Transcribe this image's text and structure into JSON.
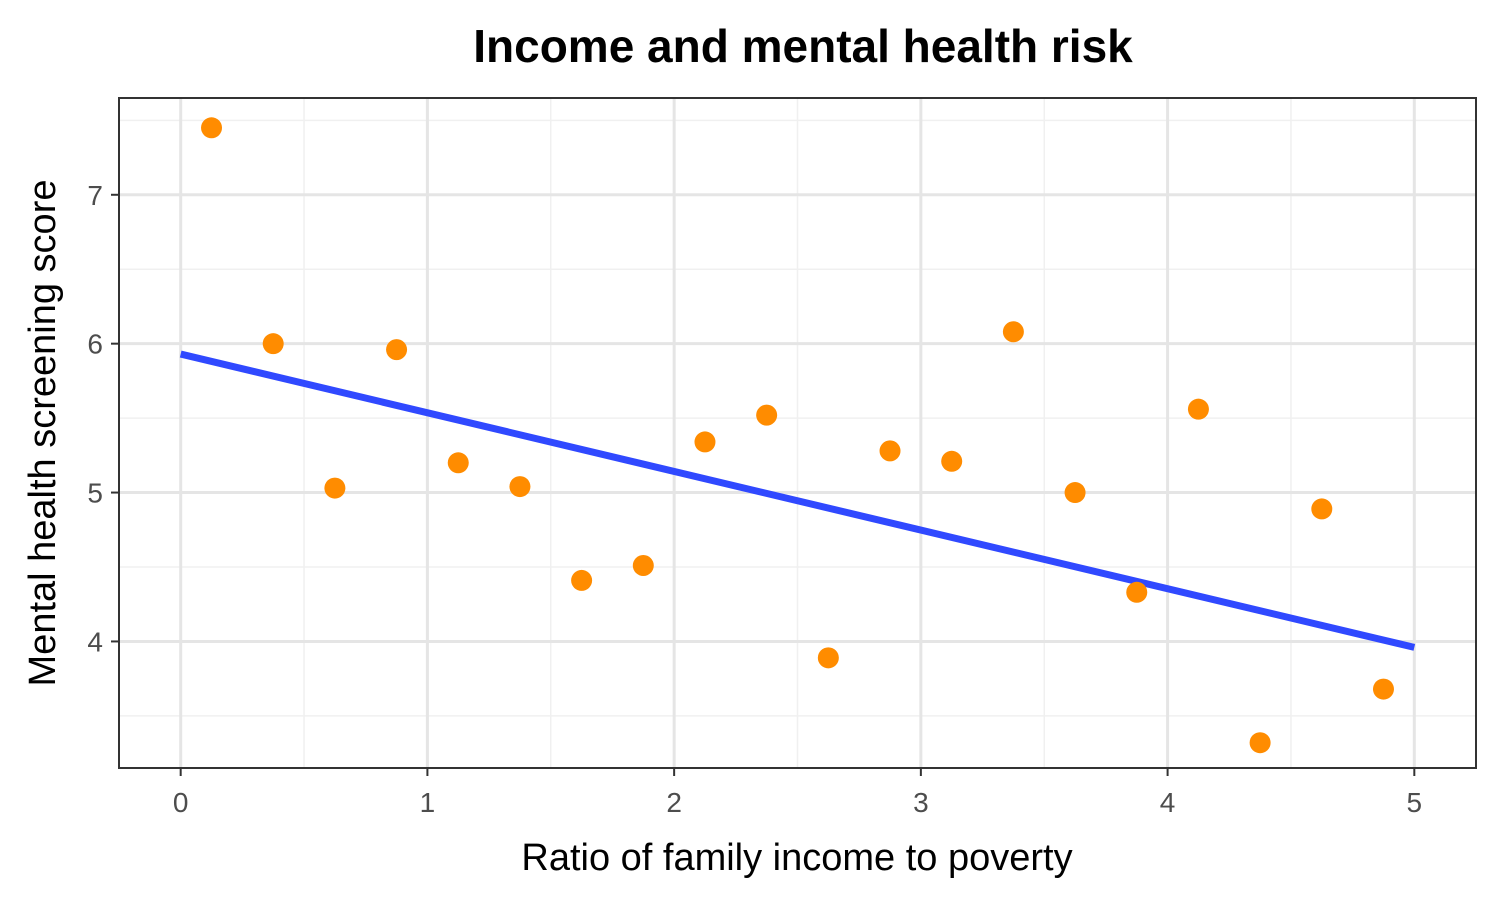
{
  "chart_data": {
    "type": "scatter",
    "title": "Income and mental health risk",
    "xlabel": "Ratio of family income to poverty",
    "ylabel": "Mental health screening score",
    "xlim": [
      -0.25,
      5.25
    ],
    "ylim": [
      3.15,
      7.65
    ],
    "x_ticks": [
      0,
      1,
      2,
      3,
      4,
      5
    ],
    "y_ticks": [
      4,
      5,
      6,
      7
    ],
    "x_tick_labels": [
      "0",
      "1",
      "2",
      "3",
      "4",
      "5"
    ],
    "y_tick_labels": [
      "4",
      "5",
      "6",
      "7"
    ],
    "grid": true,
    "legend": "none",
    "point_color": "#FF8C00",
    "line_color": "#3049FF",
    "points": [
      {
        "x": 0.125,
        "y": 7.45
      },
      {
        "x": 0.375,
        "y": 6.0
      },
      {
        "x": 0.625,
        "y": 5.03
      },
      {
        "x": 0.875,
        "y": 5.96
      },
      {
        "x": 1.125,
        "y": 5.2
      },
      {
        "x": 1.375,
        "y": 5.04
      },
      {
        "x": 1.625,
        "y": 4.41
      },
      {
        "x": 1.875,
        "y": 4.51
      },
      {
        "x": 2.125,
        "y": 5.34
      },
      {
        "x": 2.375,
        "y": 5.52
      },
      {
        "x": 2.625,
        "y": 3.89
      },
      {
        "x": 2.875,
        "y": 5.28
      },
      {
        "x": 3.125,
        "y": 5.21
      },
      {
        "x": 3.375,
        "y": 6.08
      },
      {
        "x": 3.625,
        "y": 5.0
      },
      {
        "x": 3.875,
        "y": 4.33
      },
      {
        "x": 4.125,
        "y": 5.56
      },
      {
        "x": 4.375,
        "y": 3.32
      },
      {
        "x": 4.625,
        "y": 4.89
      },
      {
        "x": 4.875,
        "y": 3.68
      }
    ],
    "trend_line": {
      "x": [
        0,
        5
      ],
      "y": [
        5.93,
        3.96
      ]
    }
  }
}
